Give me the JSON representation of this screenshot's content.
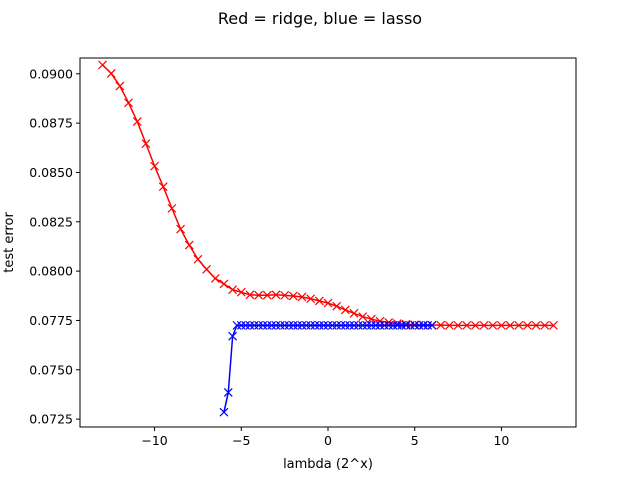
{
  "chart_data": {
    "type": "line",
    "title": "Red = ridge, blue = lasso",
    "xlabel": "lambda (2^x)",
    "ylabel": "test error",
    "xlim": [
      -14.3,
      14.3
    ],
    "ylim": [
      0.0721,
      0.0908
    ],
    "xticks": [
      -10,
      -5,
      0,
      5,
      10
    ],
    "xtick_labels": [
      "−10",
      "−5",
      "0",
      "5",
      "10"
    ],
    "yticks": [
      0.0725,
      0.075,
      0.0775,
      0.08,
      0.0825,
      0.085,
      0.0875,
      0.09
    ],
    "ytick_labels": [
      "0.0725",
      "0.0750",
      "0.0775",
      "0.0800",
      "0.0825",
      "0.0850",
      "0.0875",
      "0.0900"
    ],
    "grid": false,
    "series": [
      {
        "color": "#ff0000",
        "marker": "x",
        "x": [
          -13,
          -12.5,
          -12,
          -11.5,
          -11,
          -10.5,
          -10,
          -9.5,
          -9,
          -8.5,
          -8,
          -7.5,
          -7,
          -6.5,
          -6,
          -5.5,
          -5,
          -4.5,
          -4,
          -3.5,
          -3,
          -2.5,
          -2,
          -1.5,
          -1,
          -0.5,
          0,
          0.5,
          1,
          1.5,
          2,
          2.5,
          3,
          3.5,
          4,
          4.5,
          5,
          5.5,
          6,
          6.5,
          7,
          7.5,
          8,
          8.5,
          9,
          9.5,
          10,
          10.5,
          11,
          11.5,
          12,
          12.5,
          13
        ],
        "y": [
          0.09045,
          0.09002,
          0.08938,
          0.08853,
          0.08758,
          0.08646,
          0.08532,
          0.08428,
          0.08318,
          0.08213,
          0.08132,
          0.0806,
          0.08009,
          0.07963,
          0.07935,
          0.07906,
          0.07893,
          0.0788,
          0.07878,
          0.07878,
          0.0788,
          0.07877,
          0.07874,
          0.07869,
          0.0786,
          0.07849,
          0.07838,
          0.07822,
          0.07803,
          0.07786,
          0.07769,
          0.07757,
          0.07746,
          0.0774,
          0.07734,
          0.07731,
          0.07728,
          0.07727,
          0.07726,
          0.07726,
          0.07725,
          0.07725,
          0.07725,
          0.07725,
          0.07725,
          0.07725,
          0.07725,
          0.07725,
          0.07725,
          0.07725,
          0.07725,
          0.07725,
          0.07725
        ]
      },
      {
        "color": "#0000ff",
        "marker": "x",
        "x": [
          -6,
          -5.75,
          -5.5,
          -5.25,
          -5,
          -4.75,
          -4.5,
          -4.25,
          -4,
          -3.75,
          -3.5,
          -3.25,
          -3,
          -2.75,
          -2.5,
          -2.25,
          -2,
          -1.75,
          -1.5,
          -1.25,
          -1,
          -0.75,
          -0.5,
          -0.25,
          0,
          0.25,
          0.5,
          0.75,
          1,
          1.25,
          1.5,
          1.75,
          2,
          2.25,
          2.5,
          2.75,
          3,
          3.25,
          3.5,
          3.75,
          4,
          4.25,
          4.5,
          4.75,
          5,
          5.25,
          5.5,
          5.75,
          6
        ],
        "y": [
          0.07285,
          0.07385,
          0.0767,
          0.07725,
          0.07725,
          0.07725,
          0.07725,
          0.07725,
          0.07725,
          0.07725,
          0.07725,
          0.07725,
          0.07725,
          0.07725,
          0.07725,
          0.07725,
          0.07725,
          0.07725,
          0.07725,
          0.07725,
          0.07725,
          0.07725,
          0.07725,
          0.07725,
          0.07725,
          0.07725,
          0.07725,
          0.07725,
          0.07725,
          0.07725,
          0.07725,
          0.07725,
          0.07725,
          0.07725,
          0.07725,
          0.07725,
          0.07725,
          0.07725,
          0.07725,
          0.07725,
          0.07725,
          0.07725,
          0.07725,
          0.07725,
          0.07725,
          0.07725,
          0.07725,
          0.07725,
          0.07725
        ]
      }
    ]
  }
}
